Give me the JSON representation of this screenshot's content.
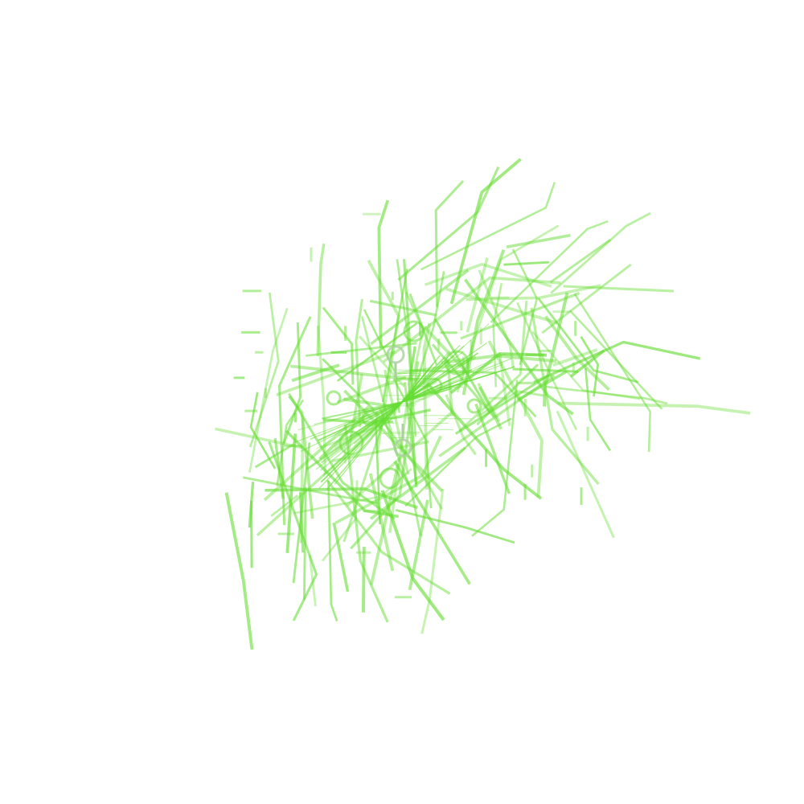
{
  "colors": {
    "background": "#ffffff",
    "stroke": "#66dd33",
    "ring": "#aad0a0"
  }
}
